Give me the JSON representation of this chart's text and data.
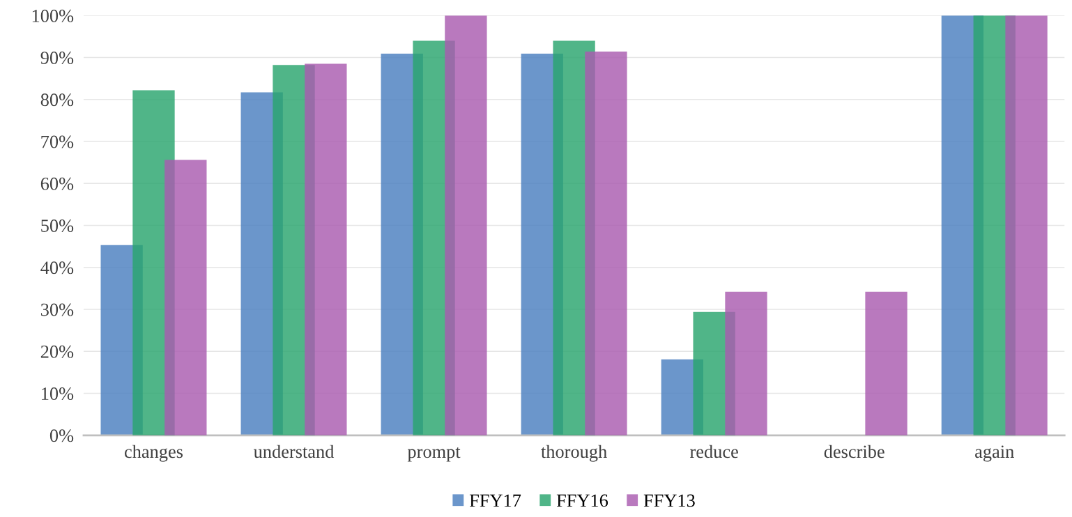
{
  "chart_data": {
    "type": "bar",
    "categories": [
      "changes",
      "understand",
      "prompt",
      "thorough",
      "reduce",
      "describe",
      "again"
    ],
    "series": [
      {
        "name": "FFY17",
        "color": "#4a7fc0",
        "values": [
          45.3,
          81.7,
          90.9,
          90.9,
          18.1,
          0,
          100
        ]
      },
      {
        "name": "FFY16",
        "color": "#2aa56e",
        "values": [
          82.2,
          88.2,
          94.0,
          94.0,
          29.4,
          0,
          100
        ]
      },
      {
        "name": "FFY13",
        "color": "#a95cb0",
        "values": [
          65.6,
          88.5,
          100,
          91.4,
          34.2,
          34.2,
          100
        ]
      }
    ],
    "ylim": [
      0,
      100
    ],
    "yticks": [
      {
        "value": 0,
        "label": "0%"
      },
      {
        "value": 10,
        "label": "10%"
      },
      {
        "value": 20,
        "label": "20%"
      },
      {
        "value": 30,
        "label": "30%"
      },
      {
        "value": 40,
        "label": "40%"
      },
      {
        "value": 50,
        "label": "50%"
      },
      {
        "value": 60,
        "label": "60%"
      },
      {
        "value": 70,
        "label": "70%"
      },
      {
        "value": 80,
        "label": "80%"
      },
      {
        "value": 90,
        "label": "90%"
      },
      {
        "value": 100,
        "label": "100%"
      }
    ],
    "grid": "y",
    "legend": "bottom"
  }
}
